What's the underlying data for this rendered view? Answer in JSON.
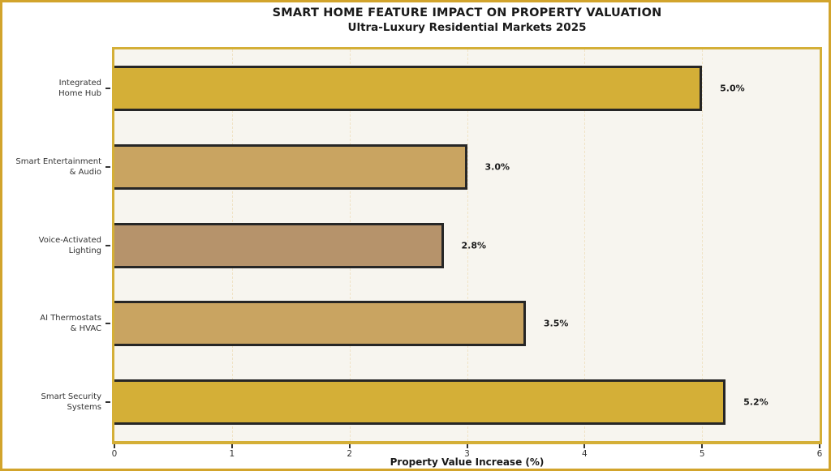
{
  "header": {
    "title": "SMART HOME FEATURE IMPACT ON PROPERTY VALUATION",
    "subtitle": "Ultra-Luxury Residential Markets 2025"
  },
  "colors": {
    "figure_border": "#d2a42c",
    "plot_border": "#d4af37",
    "plot_background": "#f7f5ef",
    "bar_border": "#262626",
    "gridline": "#f0e3c6",
    "text_dark": "#1a1a1a",
    "text_label": "#333333"
  },
  "chart_data": {
    "type": "bar",
    "orientation": "horizontal",
    "title": "SMART HOME FEATURE IMPACT ON PROPERTY VALUATION",
    "subtitle": "Ultra-Luxury Residential Markets 2025",
    "categories": [
      [
        "Integrated",
        "Home Hub"
      ],
      [
        "Smart Entertainment",
        "& Audio"
      ],
      [
        "Voice-Activated",
        "Lighting"
      ],
      [
        "AI Thermostats",
        "& HVAC"
      ],
      [
        "Smart Security",
        "Systems"
      ]
    ],
    "values": [
      5.0,
      3.0,
      2.8,
      3.5,
      5.2
    ],
    "value_labels": [
      "5.0%",
      "3.0%",
      "2.8%",
      "3.5%",
      "5.2%"
    ],
    "bar_colors": [
      "#d4af37",
      "#c9a461",
      "#b6936b",
      "#c9a461",
      "#d4af37"
    ],
    "xlabel": "Property Value Increase (%)",
    "xlim": [
      0,
      6
    ],
    "xticks": [
      0,
      1,
      2,
      3,
      4,
      5,
      6
    ],
    "grid": "vertical-dashed",
    "legend": "none"
  }
}
